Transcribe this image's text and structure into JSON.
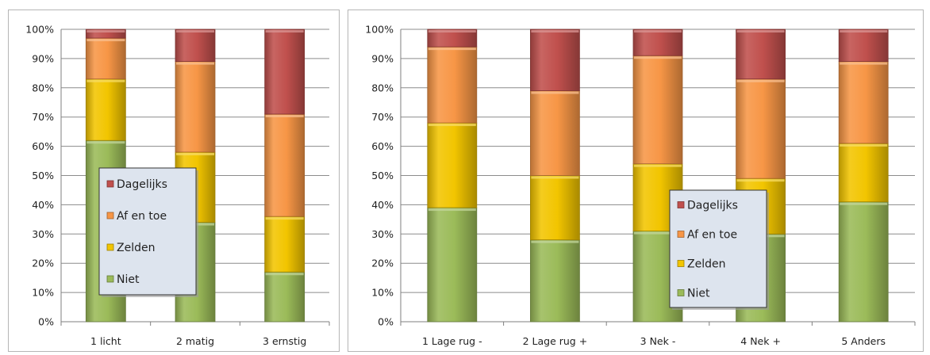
{
  "chart_data": [
    {
      "type": "bar",
      "stacked": true,
      "percent": true,
      "title": "",
      "xlabel": "",
      "ylabel": "",
      "ylim": [
        0,
        100
      ],
      "yticks": [
        "0%",
        "10%",
        "20%",
        "30%",
        "40%",
        "50%",
        "60%",
        "70%",
        "80%",
        "90%",
        "100%"
      ],
      "categories": [
        "1 licht",
        "2 matig",
        "3 ernstig"
      ],
      "grid": true,
      "legend": "inside-left",
      "series": [
        {
          "name": "Niet",
          "color": "#9bbb59",
          "values": [
            62,
            34,
            17
          ]
        },
        {
          "name": "Zelden",
          "color": "#f2c500",
          "values": [
            21,
            24,
            19
          ]
        },
        {
          "name": "Af en toe",
          "color": "#f79646",
          "values": [
            14,
            31,
            35
          ]
        },
        {
          "name": "Dagelijks",
          "color": "#c0504d",
          "values": [
            3,
            11,
            29
          ]
        }
      ]
    },
    {
      "type": "bar",
      "stacked": true,
      "percent": true,
      "title": "",
      "xlabel": "",
      "ylabel": "",
      "ylim": [
        0,
        100
      ],
      "yticks": [
        "0%",
        "10%",
        "20%",
        "30%",
        "40%",
        "50%",
        "60%",
        "70%",
        "80%",
        "90%",
        "100%"
      ],
      "categories": [
        "1 Lage rug -",
        "2 Lage rug +",
        "3 Nek -",
        "4 Nek +",
        "5 Anders"
      ],
      "grid": true,
      "legend": "inside-center",
      "series": [
        {
          "name": "Niet",
          "color": "#9bbb59",
          "values": [
            39,
            28,
            31,
            30,
            41
          ]
        },
        {
          "name": "Zelden",
          "color": "#f2c500",
          "values": [
            29,
            22,
            23,
            19,
            20
          ]
        },
        {
          "name": "Af en toe",
          "color": "#f79646",
          "values": [
            26,
            29,
            37,
            34,
            28
          ]
        },
        {
          "name": "Dagelijks",
          "color": "#c0504d",
          "values": [
            6,
            21,
            9,
            17,
            11
          ]
        }
      ]
    }
  ]
}
